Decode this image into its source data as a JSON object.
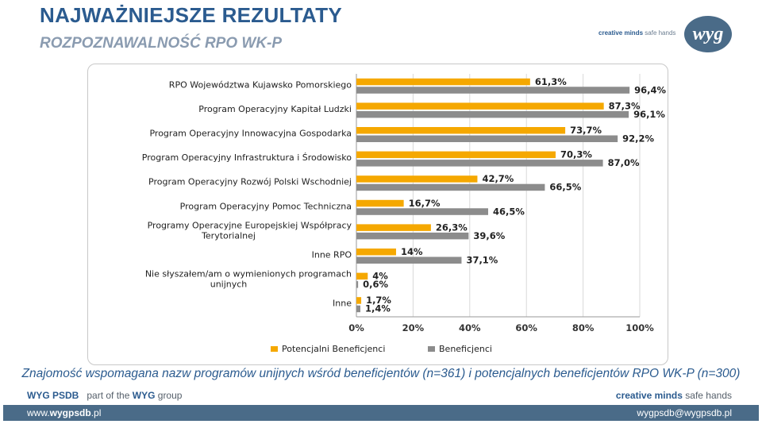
{
  "header": {
    "title": "NAJWAŻNIEJSZE REZULTATY",
    "subtitle": "ROZPOZNAWALNOŚĆ RPO WK-P"
  },
  "logo": {
    "tagline_bold": "creative minds",
    "tagline_rest": "safe hands",
    "mark": "wyg"
  },
  "caption": "Znajomość wspomagana nazw programów unijnych wśród beneficjentów (n=361) i potencjalnych beneficjentów RPO WK-P (n=300)",
  "footer": {
    "brand": "WYG PSDB",
    "part_of": "part of the",
    "group_bold": "WYG",
    "group_rest": "group",
    "right_bold": "creative minds",
    "right_rest": "safe hands",
    "web_prefix": "www.",
    "web_bold": "wygpsdb",
    "web_suffix": ".pl",
    "email": "wygpsdb@wygpsdb.pl"
  },
  "colors": {
    "potencjalni": "#f5a800",
    "beneficjenci": "#8c8c8c",
    "title": "#2b5b8f",
    "bar_footer": "#4a6b88"
  },
  "chart_data": {
    "type": "bar",
    "orientation": "horizontal",
    "categories": [
      [
        "RPO Województwa Kujawsko Pomorskiego"
      ],
      [
        "Program Operacyjny Kapitał Ludzki"
      ],
      [
        "Program Operacyjny Innowacyjna Gospodarka"
      ],
      [
        "Program Operacyjny Infrastruktura i Środowisko"
      ],
      [
        "Program Operacyjny Rozwój Polski Wschodniej"
      ],
      [
        "Program Operacyjny Pomoc Techniczna"
      ],
      [
        "Programy Operacyjne Europejskiej Współpracy",
        "Terytorialnej"
      ],
      [
        "Inne RPO"
      ],
      [
        "Nie słyszałem/am o wymienionych programach",
        "unijnych"
      ],
      [
        "Inne"
      ]
    ],
    "series": [
      {
        "name": "Potencjalni Beneficjenci",
        "values": [
          61.3,
          87.3,
          73.7,
          70.3,
          42.7,
          16.7,
          26.3,
          14,
          4,
          1.7
        ],
        "labels": [
          "61,3%",
          "87,3%",
          "73,7%",
          "70,3%",
          "42,7%",
          "16,7%",
          "26,3%",
          "14%",
          "4%",
          "1,7%"
        ]
      },
      {
        "name": "Beneficjenci",
        "values": [
          96.4,
          96.1,
          92.2,
          87.0,
          66.5,
          46.5,
          39.6,
          37.1,
          0.6,
          1.4
        ],
        "labels": [
          "96,4%",
          "96,1%",
          "92,2%",
          "87,0%",
          "66,5%",
          "46,5%",
          "39,6%",
          "37,1%",
          "0,6%",
          "1,4%"
        ]
      }
    ],
    "xlim": [
      0,
      100
    ],
    "xticks": [
      "0%",
      "20%",
      "40%",
      "60%",
      "80%",
      "100%"
    ],
    "grid": true,
    "legend": "bottom"
  }
}
